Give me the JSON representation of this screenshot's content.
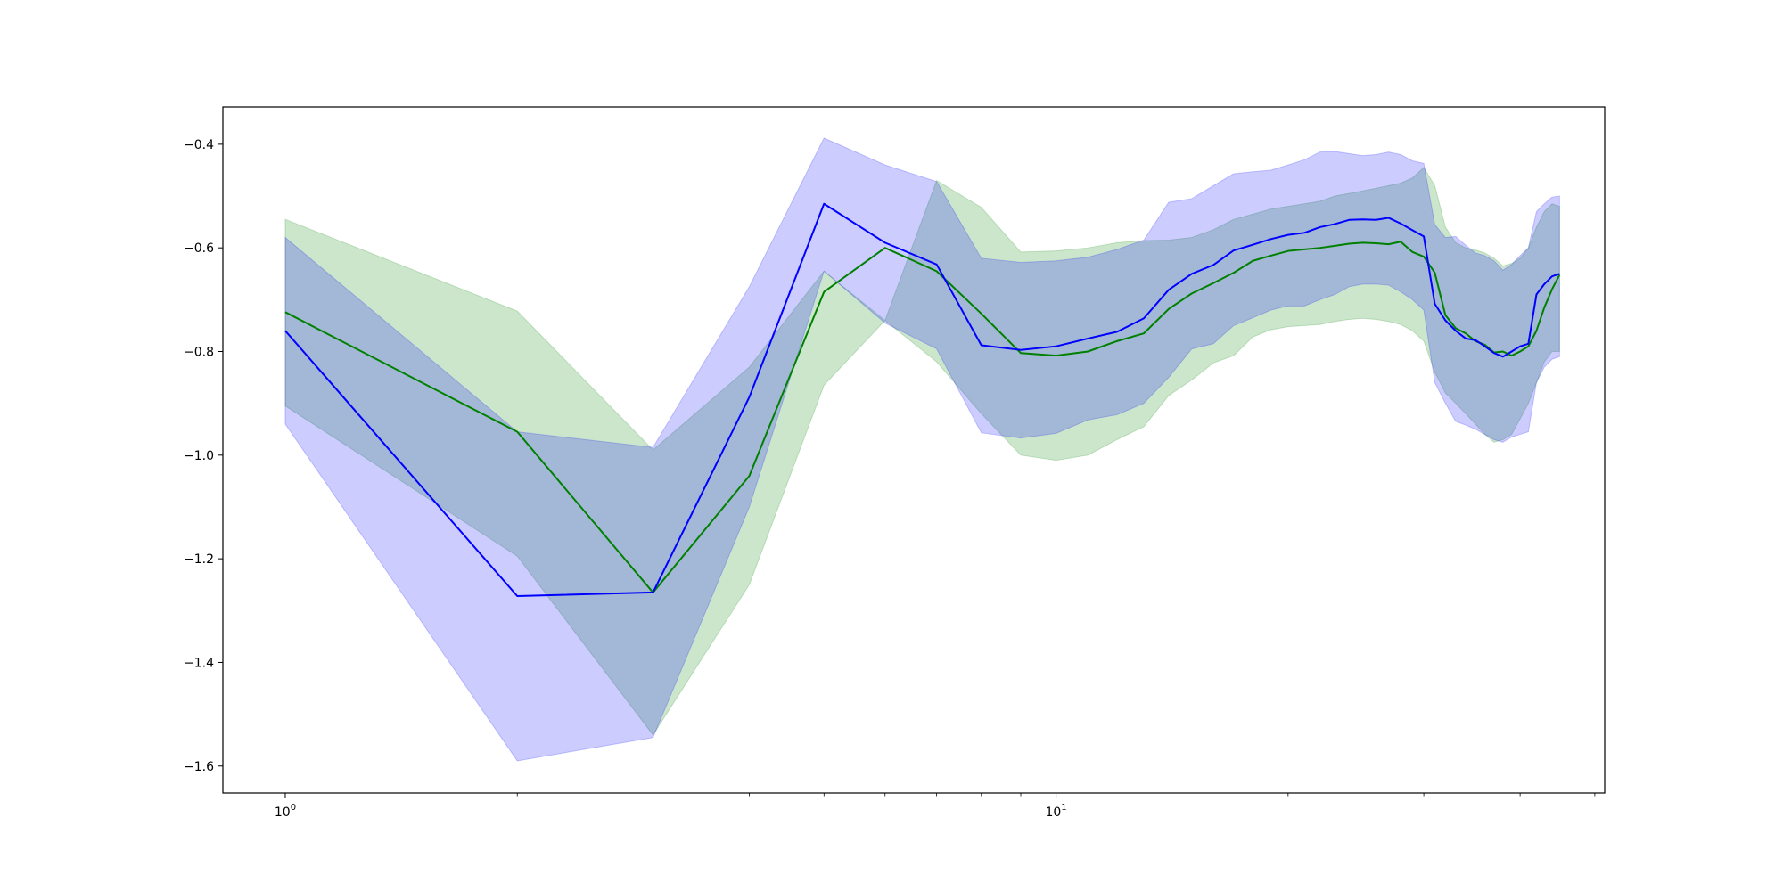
{
  "chart_data": {
    "type": "line",
    "title": "",
    "xlabel": "",
    "ylabel": "",
    "xscale": "log",
    "xlim": [
      0.83,
      51.5
    ],
    "ylim": [
      -1.652,
      -0.328
    ],
    "grid": false,
    "legend": "none",
    "y_ticks": [
      -0.4,
      -0.6,
      -0.8,
      -1.0,
      -1.2,
      -1.4,
      -1.6
    ],
    "y_tick_labels": [
      "−0.4",
      "−0.6",
      "−0.8",
      "−1.0",
      "−1.2",
      "−1.4",
      "−1.6"
    ],
    "x_major_ticks": [
      1,
      10
    ],
    "x_major_tick_labels": [
      {
        "base": "10",
        "exp": "0"
      },
      {
        "base": "10",
        "exp": "1"
      }
    ],
    "x_minor_ticks": [
      2,
      3,
      4,
      5,
      6,
      7,
      8,
      9,
      20,
      30,
      40,
      50
    ],
    "x": [
      1,
      2,
      3,
      4,
      5,
      6,
      7,
      8,
      9,
      10,
      11,
      12,
      13,
      14,
      15,
      16,
      17,
      18,
      19,
      20,
      21,
      22,
      23,
      24,
      25,
      26,
      27,
      28,
      29,
      30,
      31,
      32,
      33,
      34,
      35,
      36,
      37,
      38,
      39,
      40,
      41,
      42,
      43,
      44,
      45
    ],
    "series": [
      {
        "color": "#008000",
        "band_color": "#008000",
        "band_opacity": 0.2,
        "values": [
          -0.724,
          -0.955,
          -1.265,
          -1.04,
          -0.685,
          -0.6,
          -0.645,
          -0.727,
          -0.803,
          -0.808,
          -0.8,
          -0.78,
          -0.765,
          -0.718,
          -0.688,
          -0.668,
          -0.648,
          -0.625,
          -0.615,
          -0.606,
          -0.603,
          -0.6,
          -0.596,
          -0.592,
          -0.59,
          -0.591,
          -0.593,
          -0.588,
          -0.608,
          -0.617,
          -0.648,
          -0.73,
          -0.755,
          -0.765,
          -0.78,
          -0.787,
          -0.802,
          -0.8,
          -0.808,
          -0.8,
          -0.79,
          -0.76,
          -0.715,
          -0.68,
          -0.652
        ],
        "upper": [
          -0.545,
          -0.722,
          -0.99,
          -0.83,
          -0.645,
          -0.74,
          -0.47,
          -0.522,
          -0.608,
          -0.606,
          -0.6,
          -0.59,
          -0.586,
          -0.585,
          -0.58,
          -0.565,
          -0.545,
          -0.535,
          -0.525,
          -0.52,
          -0.515,
          -0.51,
          -0.5,
          -0.495,
          -0.49,
          -0.485,
          -0.48,
          -0.475,
          -0.465,
          -0.445,
          -0.48,
          -0.56,
          -0.59,
          -0.6,
          -0.604,
          -0.61,
          -0.62,
          -0.635,
          -0.63,
          -0.62,
          -0.6,
          -0.56,
          -0.53,
          -0.515,
          -0.52
        ],
        "lower": [
          -0.905,
          -1.195,
          -1.54,
          -1.25,
          -0.865,
          -0.74,
          -0.82,
          -0.92,
          -1.0,
          -1.01,
          -1.0,
          -0.97,
          -0.945,
          -0.885,
          -0.855,
          -0.822,
          -0.808,
          -0.772,
          -0.758,
          -0.752,
          -0.75,
          -0.748,
          -0.742,
          -0.738,
          -0.736,
          -0.738,
          -0.742,
          -0.748,
          -0.76,
          -0.78,
          -0.84,
          -0.88,
          -0.9,
          -0.92,
          -0.94,
          -0.96,
          -0.975,
          -0.97,
          -0.96,
          -0.93,
          -0.9,
          -0.86,
          -0.82,
          -0.8,
          -0.8
        ]
      },
      {
        "color": "#0000ff",
        "band_color": "#0000ff",
        "band_opacity": 0.2,
        "values": [
          -0.76,
          -1.272,
          -1.265,
          -0.888,
          -0.515,
          -0.59,
          -0.632,
          -0.788,
          -0.797,
          -0.79,
          -0.775,
          -0.762,
          -0.736,
          -0.681,
          -0.65,
          -0.633,
          -0.605,
          -0.594,
          -0.583,
          -0.575,
          -0.571,
          -0.56,
          -0.554,
          -0.546,
          -0.545,
          -0.546,
          -0.542,
          -0.553,
          -0.566,
          -0.578,
          -0.708,
          -0.74,
          -0.76,
          -0.775,
          -0.778,
          -0.79,
          -0.803,
          -0.81,
          -0.8,
          -0.79,
          -0.785,
          -0.69,
          -0.67,
          -0.655,
          -0.65
        ],
        "upper": [
          -0.58,
          -0.955,
          -0.985,
          -0.675,
          -0.388,
          -0.44,
          -0.472,
          -0.62,
          -0.628,
          -0.625,
          -0.618,
          -0.603,
          -0.585,
          -0.512,
          -0.505,
          -0.48,
          -0.457,
          -0.453,
          -0.45,
          -0.44,
          -0.43,
          -0.415,
          -0.414,
          -0.418,
          -0.422,
          -0.42,
          -0.415,
          -0.42,
          -0.432,
          -0.437,
          -0.555,
          -0.58,
          -0.578,
          -0.595,
          -0.61,
          -0.615,
          -0.625,
          -0.643,
          -0.632,
          -0.615,
          -0.6,
          -0.53,
          -0.515,
          -0.502,
          -0.5
        ],
        "lower": [
          -0.94,
          -1.59,
          -1.545,
          -1.1,
          -0.645,
          -0.745,
          -0.795,
          -0.957,
          -0.967,
          -0.958,
          -0.932,
          -0.922,
          -0.9,
          -0.85,
          -0.795,
          -0.785,
          -0.75,
          -0.735,
          -0.72,
          -0.712,
          -0.712,
          -0.7,
          -0.69,
          -0.675,
          -0.67,
          -0.67,
          -0.672,
          -0.685,
          -0.7,
          -0.72,
          -0.86,
          -0.9,
          -0.935,
          -0.942,
          -0.95,
          -0.96,
          -0.97,
          -0.975,
          -0.965,
          -0.96,
          -0.955,
          -0.86,
          -0.83,
          -0.815,
          -0.81
        ]
      }
    ]
  }
}
